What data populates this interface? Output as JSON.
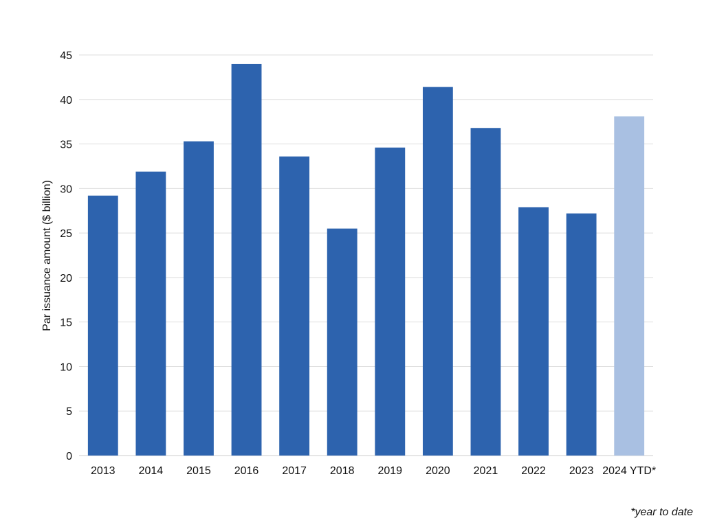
{
  "chart_data": {
    "type": "bar",
    "title": "",
    "xlabel": "",
    "ylabel": "Par issuance amount ($ billion)",
    "categories": [
      "2013",
      "2014",
      "2015",
      "2016",
      "2017",
      "2018",
      "2019",
      "2020",
      "2021",
      "2022",
      "2023",
      "2024 YTD*"
    ],
    "values": [
      29.2,
      31.9,
      35.3,
      44.0,
      33.6,
      25.5,
      34.6,
      41.4,
      36.8,
      27.9,
      27.2,
      38.1
    ],
    "ylim": [
      0,
      45
    ],
    "yticks": [
      0,
      5,
      10,
      15,
      20,
      25,
      30,
      35,
      40,
      45
    ],
    "grid": true,
    "colors": {
      "bar": "#2d63ae",
      "highlight_bar": "#a9c0e2",
      "grid": "#dddddd"
    },
    "highlight_category": "2024 YTD*"
  },
  "footnote": "*year to date"
}
